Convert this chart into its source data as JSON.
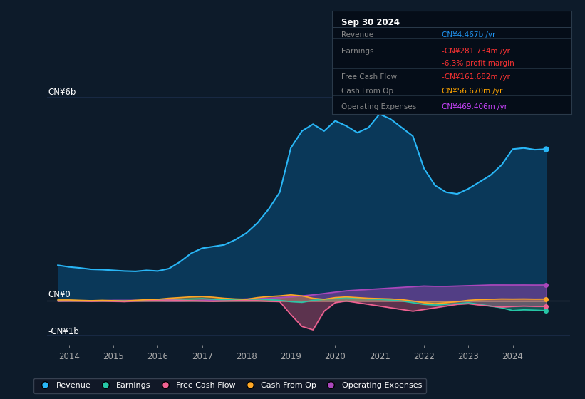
{
  "background_color": "#0d1b2a",
  "plot_bg_color": "#0d1b2a",
  "title_box": {
    "date": "Sep 30 2024",
    "rows": [
      {
        "label": "Revenue",
        "value": "CN¥4.467b /yr",
        "value_color": "#2196f3"
      },
      {
        "label": "Earnings",
        "value": "-CN¥281.734m /yr",
        "value_color": "#ff3333"
      },
      {
        "label": "",
        "value": "-6.3% profit margin",
        "value_color": "#ff3333"
      },
      {
        "label": "Free Cash Flow",
        "value": "-CN¥161.682m /yr",
        "value_color": "#ff3333"
      },
      {
        "label": "Cash From Op",
        "value": "CN¥56.670m /yr",
        "value_color": "#ffa500"
      },
      {
        "label": "Operating Expenses",
        "value": "CN¥469.406m /yr",
        "value_color": "#cc44ff"
      }
    ]
  },
  "years": [
    2013.75,
    2014,
    2014.25,
    2014.5,
    2014.75,
    2015,
    2015.25,
    2015.5,
    2015.75,
    2016,
    2016.25,
    2016.5,
    2016.75,
    2017,
    2017.25,
    2017.5,
    2017.75,
    2018,
    2018.25,
    2018.5,
    2018.75,
    2019,
    2019.25,
    2019.5,
    2019.75,
    2020,
    2020.25,
    2020.5,
    2020.75,
    2021,
    2021.25,
    2021.5,
    2021.75,
    2022,
    2022.25,
    2022.5,
    2022.75,
    2023,
    2023.25,
    2023.5,
    2023.75,
    2024,
    2024.25,
    2024.5,
    2024.75
  ],
  "revenue": [
    1.05,
    1.0,
    0.97,
    0.93,
    0.92,
    0.9,
    0.88,
    0.87,
    0.9,
    0.88,
    0.95,
    1.15,
    1.4,
    1.55,
    1.6,
    1.65,
    1.8,
    2.0,
    2.3,
    2.7,
    3.2,
    4.5,
    5.0,
    5.2,
    5.0,
    5.3,
    5.15,
    4.95,
    5.1,
    5.5,
    5.35,
    5.1,
    4.85,
    3.9,
    3.4,
    3.2,
    3.15,
    3.3,
    3.5,
    3.7,
    4.0,
    4.467,
    4.5,
    4.45,
    4.467
  ],
  "earnings": [
    0.02,
    0.02,
    0.01,
    0.01,
    0.01,
    0.01,
    0.0,
    0.01,
    0.02,
    0.03,
    0.04,
    0.05,
    0.06,
    0.07,
    0.05,
    0.04,
    0.04,
    0.05,
    0.06,
    0.04,
    0.02,
    -0.02,
    -0.04,
    0.02,
    0.05,
    0.08,
    0.1,
    0.08,
    0.06,
    0.05,
    0.03,
    0.0,
    -0.05,
    -0.1,
    -0.12,
    -0.1,
    -0.08,
    -0.05,
    -0.1,
    -0.15,
    -0.2,
    -0.282,
    -0.26,
    -0.27,
    -0.282
  ],
  "free_cash_flow": [
    0.0,
    0.01,
    0.0,
    -0.01,
    0.0,
    -0.01,
    -0.02,
    0.0,
    0.01,
    0.02,
    0.03,
    0.02,
    0.01,
    0.0,
    -0.01,
    0.0,
    0.01,
    0.02,
    0.01,
    -0.01,
    -0.02,
    -0.4,
    -0.75,
    -0.85,
    -0.3,
    -0.05,
    0.0,
    -0.05,
    -0.1,
    -0.15,
    -0.2,
    -0.25,
    -0.3,
    -0.25,
    -0.2,
    -0.15,
    -0.1,
    -0.08,
    -0.12,
    -0.15,
    -0.18,
    -0.162,
    -0.15,
    -0.16,
    -0.162
  ],
  "cash_from_op": [
    0.03,
    0.03,
    0.02,
    0.01,
    0.02,
    0.01,
    0.0,
    0.02,
    0.04,
    0.05,
    0.08,
    0.1,
    0.12,
    0.13,
    0.11,
    0.08,
    0.06,
    0.05,
    0.1,
    0.13,
    0.15,
    0.18,
    0.15,
    0.08,
    0.05,
    0.1,
    0.12,
    0.1,
    0.08,
    0.07,
    0.06,
    0.04,
    0.0,
    -0.05,
    -0.08,
    -0.05,
    -0.02,
    0.02,
    0.04,
    0.05,
    0.06,
    0.057,
    0.06,
    0.055,
    0.057
  ],
  "operating_expenses": [
    0.0,
    0.0,
    0.01,
    0.01,
    0.01,
    0.02,
    0.02,
    0.02,
    0.01,
    0.01,
    0.0,
    0.0,
    0.01,
    0.02,
    0.03,
    0.04,
    0.05,
    0.06,
    0.07,
    0.08,
    0.1,
    0.12,
    0.15,
    0.18,
    0.22,
    0.26,
    0.3,
    0.32,
    0.34,
    0.36,
    0.38,
    0.4,
    0.42,
    0.44,
    0.43,
    0.43,
    0.44,
    0.45,
    0.46,
    0.47,
    0.47,
    0.469,
    0.47,
    0.468,
    0.469
  ],
  "revenue_color": "#29b6f6",
  "earnings_color": "#26c6a6",
  "free_cash_flow_color": "#f06292",
  "cash_from_op_color": "#ffa726",
  "operating_expenses_color": "#ab47bc",
  "revenue_fill_alpha": 0.85,
  "ylim": [
    -1.3,
    6.8
  ],
  "grid_color": "#1e3050",
  "zero_line_color": "#cccccc",
  "xtick_labels": [
    "2014",
    "2015",
    "2016",
    "2017",
    "2018",
    "2019",
    "2020",
    "2021",
    "2022",
    "2023",
    "2024"
  ],
  "legend_entries": [
    "Revenue",
    "Earnings",
    "Free Cash Flow",
    "Cash From Op",
    "Operating Expenses"
  ],
  "legend_colors": [
    "#29b6f6",
    "#26c6a6",
    "#f06292",
    "#ffa726",
    "#ab47bc"
  ],
  "legend_bg": "#111827",
  "legend_edge": "#374151"
}
